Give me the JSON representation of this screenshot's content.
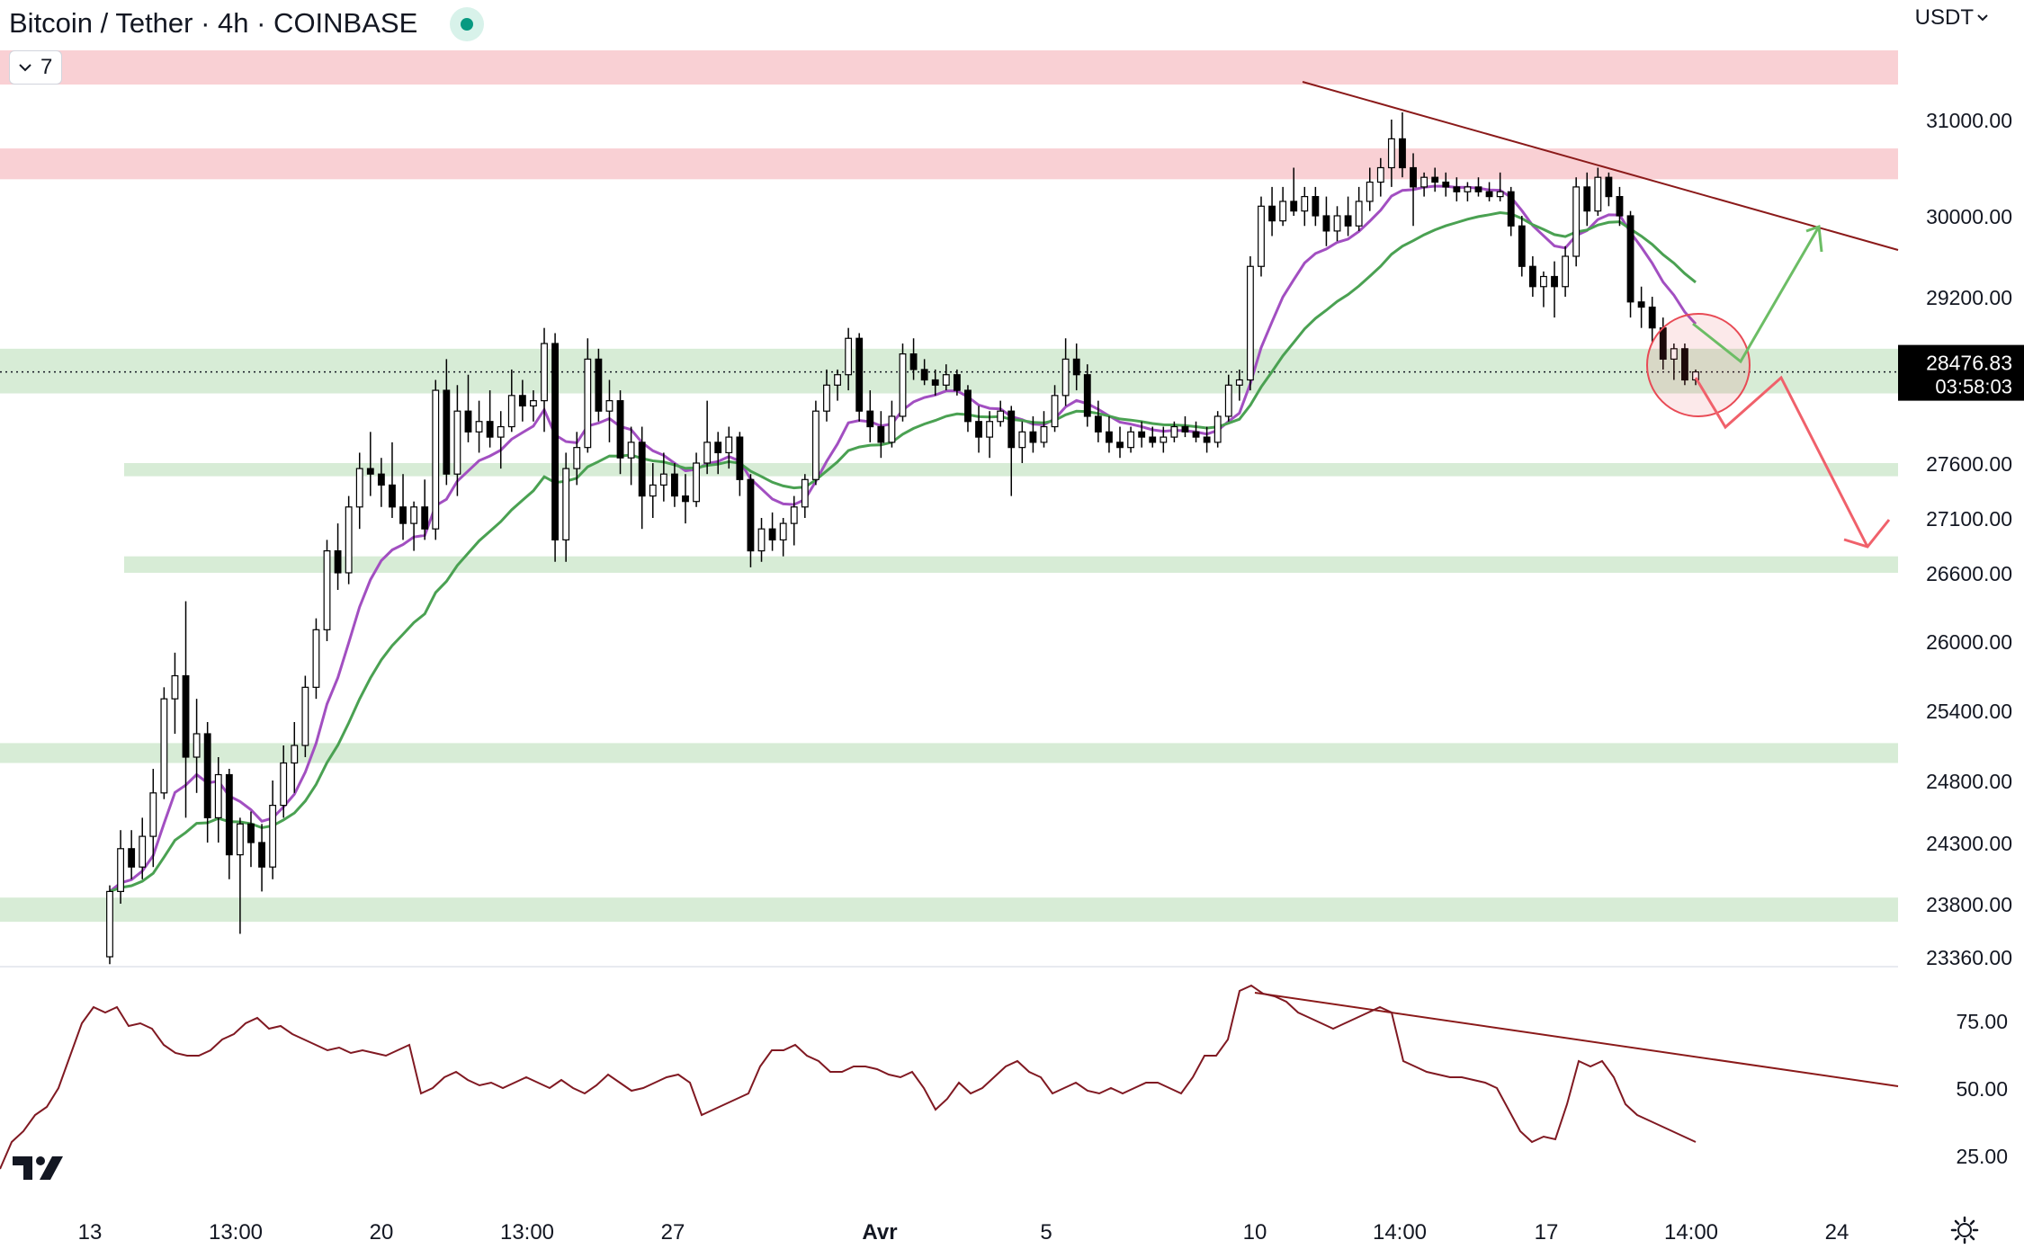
{
  "header": {
    "title": "Bitcoin / Tether · 4h · COINBASE",
    "indicator_count": "7",
    "currency": "USDT"
  },
  "colors": {
    "resistance_zone": "#f9d0d4",
    "support_zone": "#d7ecd6",
    "ema_fast": "#a24fc1",
    "ema_slow": "#4aa152",
    "trendline": "#8b1a1a",
    "rsi_line": "#801922",
    "bull_arrow": "#6cbd65",
    "bear_arrow": "#f0616b",
    "highlight_circle": "#e84a55",
    "price_badge": "#000000"
  },
  "price_badge": {
    "price": "28476.83",
    "countdown": "03:58:03"
  },
  "icons": {
    "logo": "tradingview-logo-icon",
    "settings": "settings-gear-icon",
    "chevron": "chevron-down-icon"
  },
  "chart_data": [
    {
      "type": "candlestick",
      "symbol": "Bitcoin / Tether",
      "timeframe": "4h",
      "exchange": "COINBASE",
      "currency": "USDT",
      "y_ticks": [
        "31000.00",
        "30000.00",
        "29200.00",
        "27600.00",
        "27100.00",
        "26600.00",
        "26000.00",
        "25400.00",
        "24800.00",
        "24300.00",
        "23800.00",
        "23360.00"
      ],
      "x_ticks": [
        "13",
        "13:00",
        "20",
        "13:00",
        "27",
        "Avr",
        "5",
        "10",
        "14:00",
        "17",
        "14:00",
        "24"
      ],
      "last_price": 28476.83,
      "ohlc": [
        {
          "o": 23360,
          "h": 23950,
          "l": 23300,
          "c": 23900
        },
        {
          "o": 23900,
          "h": 24400,
          "l": 23800,
          "c": 24250
        },
        {
          "o": 24250,
          "h": 24400,
          "l": 24000,
          "c": 24100
        },
        {
          "o": 24100,
          "h": 24500,
          "l": 24000,
          "c": 24350
        },
        {
          "o": 24350,
          "h": 24900,
          "l": 24100,
          "c": 24700
        },
        {
          "o": 24700,
          "h": 25600,
          "l": 24650,
          "c": 25500
        },
        {
          "o": 25500,
          "h": 25900,
          "l": 25200,
          "c": 25700
        },
        {
          "o": 25700,
          "h": 26350,
          "l": 24500,
          "c": 25000
        },
        {
          "o": 25000,
          "h": 25500,
          "l": 24700,
          "c": 25200
        },
        {
          "o": 25200,
          "h": 25300,
          "l": 24300,
          "c": 24500
        },
        {
          "o": 24500,
          "h": 25000,
          "l": 24300,
          "c": 24850
        },
        {
          "o": 24850,
          "h": 24900,
          "l": 24000,
          "c": 24200
        },
        {
          "o": 24200,
          "h": 24500,
          "l": 23550,
          "c": 24450
        },
        {
          "o": 24450,
          "h": 24550,
          "l": 24100,
          "c": 24300
        },
        {
          "o": 24300,
          "h": 24450,
          "l": 23900,
          "c": 24100
        },
        {
          "o": 24100,
          "h": 24800,
          "l": 24000,
          "c": 24600
        },
        {
          "o": 24600,
          "h": 25100,
          "l": 24500,
          "c": 24950
        },
        {
          "o": 24950,
          "h": 25300,
          "l": 24700,
          "c": 25100
        },
        {
          "o": 25100,
          "h": 25700,
          "l": 25000,
          "c": 25600
        },
        {
          "o": 25600,
          "h": 26200,
          "l": 25500,
          "c": 26100
        },
        {
          "o": 26100,
          "h": 26900,
          "l": 26000,
          "c": 26800
        },
        {
          "o": 26800,
          "h": 27050,
          "l": 26450,
          "c": 26600
        },
        {
          "o": 26600,
          "h": 27300,
          "l": 26500,
          "c": 27200
        },
        {
          "o": 27200,
          "h": 27700,
          "l": 27000,
          "c": 27550
        },
        {
          "o": 27550,
          "h": 27900,
          "l": 27300,
          "c": 27500
        },
        {
          "o": 27500,
          "h": 27650,
          "l": 27200,
          "c": 27400
        },
        {
          "o": 27400,
          "h": 27800,
          "l": 27100,
          "c": 27200
        },
        {
          "o": 27200,
          "h": 27500,
          "l": 26900,
          "c": 27050
        },
        {
          "o": 27050,
          "h": 27250,
          "l": 26800,
          "c": 27200
        },
        {
          "o": 27200,
          "h": 27450,
          "l": 26900,
          "c": 27000
        },
        {
          "o": 27000,
          "h": 28400,
          "l": 26900,
          "c": 28300
        },
        {
          "o": 28300,
          "h": 28600,
          "l": 27400,
          "c": 27500
        },
        {
          "o": 27500,
          "h": 28350,
          "l": 27300,
          "c": 28100
        },
        {
          "o": 28100,
          "h": 28450,
          "l": 27800,
          "c": 27900
        },
        {
          "o": 27900,
          "h": 28200,
          "l": 27700,
          "c": 28000
        },
        {
          "o": 28000,
          "h": 28300,
          "l": 27750,
          "c": 27850
        },
        {
          "o": 27850,
          "h": 28100,
          "l": 27550,
          "c": 27950
        },
        {
          "o": 27950,
          "h": 28500,
          "l": 27900,
          "c": 28250
        },
        {
          "o": 28250,
          "h": 28400,
          "l": 28000,
          "c": 28150
        },
        {
          "o": 28150,
          "h": 28300,
          "l": 28000,
          "c": 28200
        },
        {
          "o": 28200,
          "h": 28900,
          "l": 27900,
          "c": 28750
        },
        {
          "o": 28750,
          "h": 28850,
          "l": 26700,
          "c": 26900
        },
        {
          "o": 26900,
          "h": 27700,
          "l": 26700,
          "c": 27550
        },
        {
          "o": 27550,
          "h": 27900,
          "l": 27400,
          "c": 27750
        },
        {
          "o": 27750,
          "h": 28800,
          "l": 27700,
          "c": 28600
        },
        {
          "o": 28600,
          "h": 28700,
          "l": 28000,
          "c": 28100
        },
        {
          "o": 28100,
          "h": 28400,
          "l": 27800,
          "c": 28200
        },
        {
          "o": 28200,
          "h": 28300,
          "l": 27500,
          "c": 27650
        },
        {
          "o": 27650,
          "h": 27950,
          "l": 27400,
          "c": 27800
        },
        {
          "o": 27800,
          "h": 27950,
          "l": 27000,
          "c": 27300
        },
        {
          "o": 27300,
          "h": 27600,
          "l": 27100,
          "c": 27400
        },
        {
          "o": 27400,
          "h": 27700,
          "l": 27250,
          "c": 27500
        },
        {
          "o": 27500,
          "h": 27600,
          "l": 27200,
          "c": 27300
        },
        {
          "o": 27300,
          "h": 27500,
          "l": 27050,
          "c": 27250
        },
        {
          "o": 27250,
          "h": 27700,
          "l": 27200,
          "c": 27600
        },
        {
          "o": 27600,
          "h": 28200,
          "l": 27500,
          "c": 27800
        },
        {
          "o": 27800,
          "h": 27900,
          "l": 27500,
          "c": 27700
        },
        {
          "o": 27700,
          "h": 27950,
          "l": 27550,
          "c": 27850
        },
        {
          "o": 27850,
          "h": 27900,
          "l": 27300,
          "c": 27450
        },
        {
          "o": 27450,
          "h": 27500,
          "l": 26650,
          "c": 26800
        },
        {
          "o": 26800,
          "h": 27100,
          "l": 26700,
          "c": 27000
        },
        {
          "o": 27000,
          "h": 27150,
          "l": 26800,
          "c": 26900
        },
        {
          "o": 26900,
          "h": 27100,
          "l": 26750,
          "c": 27050
        },
        {
          "o": 27050,
          "h": 27300,
          "l": 26850,
          "c": 27200
        },
        {
          "o": 27200,
          "h": 27500,
          "l": 27100,
          "c": 27450
        },
        {
          "o": 27450,
          "h": 28200,
          "l": 27400,
          "c": 28100
        },
        {
          "o": 28100,
          "h": 28500,
          "l": 28000,
          "c": 28350
        },
        {
          "o": 28350,
          "h": 28500,
          "l": 28200,
          "c": 28450
        },
        {
          "o": 28450,
          "h": 28900,
          "l": 28300,
          "c": 28800
        },
        {
          "o": 28800,
          "h": 28850,
          "l": 28000,
          "c": 28100
        },
        {
          "o": 28100,
          "h": 28300,
          "l": 27800,
          "c": 27950
        },
        {
          "o": 27950,
          "h": 28100,
          "l": 27650,
          "c": 27800
        },
        {
          "o": 27800,
          "h": 28200,
          "l": 27750,
          "c": 28050
        },
        {
          "o": 28050,
          "h": 28750,
          "l": 28000,
          "c": 28650
        },
        {
          "o": 28650,
          "h": 28800,
          "l": 28400,
          "c": 28500
        },
        {
          "o": 28500,
          "h": 28600,
          "l": 28350,
          "c": 28400
        },
        {
          "o": 28400,
          "h": 28500,
          "l": 28250,
          "c": 28350
        },
        {
          "o": 28350,
          "h": 28550,
          "l": 28300,
          "c": 28450
        },
        {
          "o": 28450,
          "h": 28500,
          "l": 28250,
          "c": 28300
        },
        {
          "o": 28300,
          "h": 28350,
          "l": 27900,
          "c": 28000
        },
        {
          "o": 28000,
          "h": 28150,
          "l": 27700,
          "c": 27850
        },
        {
          "o": 27850,
          "h": 28100,
          "l": 27650,
          "c": 28000
        },
        {
          "o": 28000,
          "h": 28200,
          "l": 27950,
          "c": 28100
        },
        {
          "o": 28100,
          "h": 28150,
          "l": 27300,
          "c": 27750
        },
        {
          "o": 27750,
          "h": 28000,
          "l": 27600,
          "c": 27900
        },
        {
          "o": 27900,
          "h": 28050,
          "l": 27700,
          "c": 27800
        },
        {
          "o": 27800,
          "h": 28100,
          "l": 27750,
          "c": 27950
        },
        {
          "o": 27950,
          "h": 28350,
          "l": 27900,
          "c": 28250
        },
        {
          "o": 28250,
          "h": 28800,
          "l": 28150,
          "c": 28600
        },
        {
          "o": 28600,
          "h": 28750,
          "l": 28300,
          "c": 28450
        },
        {
          "o": 28450,
          "h": 28550,
          "l": 27950,
          "c": 28050
        },
        {
          "o": 28050,
          "h": 28200,
          "l": 27800,
          "c": 27900
        },
        {
          "o": 27900,
          "h": 28050,
          "l": 27700,
          "c": 27800
        },
        {
          "o": 27800,
          "h": 27950,
          "l": 27650,
          "c": 27750
        },
        {
          "o": 27750,
          "h": 27950,
          "l": 27700,
          "c": 27900
        },
        {
          "o": 27900,
          "h": 28000,
          "l": 27750,
          "c": 27850
        },
        {
          "o": 27850,
          "h": 27950,
          "l": 27750,
          "c": 27800
        },
        {
          "o": 27800,
          "h": 27950,
          "l": 27700,
          "c": 27850
        },
        {
          "o": 27850,
          "h": 28000,
          "l": 27800,
          "c": 27950
        },
        {
          "o": 27950,
          "h": 28050,
          "l": 27850,
          "c": 27900
        },
        {
          "o": 27900,
          "h": 28000,
          "l": 27800,
          "c": 27850
        },
        {
          "o": 27850,
          "h": 27950,
          "l": 27700,
          "c": 27800
        },
        {
          "o": 27800,
          "h": 28100,
          "l": 27750,
          "c": 28050
        },
        {
          "o": 28050,
          "h": 28450,
          "l": 28000,
          "c": 28350
        },
        {
          "o": 28350,
          "h": 28500,
          "l": 28200,
          "c": 28400
        },
        {
          "o": 28400,
          "h": 29600,
          "l": 28300,
          "c": 29500
        },
        {
          "o": 29500,
          "h": 30200,
          "l": 29400,
          "c": 30100
        },
        {
          "o": 30100,
          "h": 30300,
          "l": 29800,
          "c": 29950
        },
        {
          "o": 29950,
          "h": 30300,
          "l": 29900,
          "c": 30150
        },
        {
          "o": 30150,
          "h": 30500,
          "l": 30000,
          "c": 30050
        },
        {
          "o": 30050,
          "h": 30300,
          "l": 29900,
          "c": 30200
        },
        {
          "o": 30200,
          "h": 30300,
          "l": 29900,
          "c": 30000
        },
        {
          "o": 30000,
          "h": 30200,
          "l": 29700,
          "c": 29850
        },
        {
          "o": 29850,
          "h": 30100,
          "l": 29750,
          "c": 30000
        },
        {
          "o": 30000,
          "h": 30200,
          "l": 29800,
          "c": 29900
        },
        {
          "o": 29900,
          "h": 30300,
          "l": 29850,
          "c": 30150
        },
        {
          "o": 30150,
          "h": 30500,
          "l": 30050,
          "c": 30350
        },
        {
          "o": 30350,
          "h": 30600,
          "l": 30200,
          "c": 30500
        },
        {
          "o": 30500,
          "h": 31000,
          "l": 30300,
          "c": 30800
        },
        {
          "o": 30800,
          "h": 31050,
          "l": 30400,
          "c": 30500
        },
        {
          "o": 30500,
          "h": 30650,
          "l": 29900,
          "c": 30300
        },
        {
          "o": 30300,
          "h": 30450,
          "l": 30200,
          "c": 30400
        },
        {
          "o": 30400,
          "h": 30500,
          "l": 30250,
          "c": 30350
        },
        {
          "o": 30350,
          "h": 30450,
          "l": 30200,
          "c": 30300
        },
        {
          "o": 30300,
          "h": 30400,
          "l": 30150,
          "c": 30250
        },
        {
          "o": 30250,
          "h": 30350,
          "l": 30150,
          "c": 30300
        },
        {
          "o": 30300,
          "h": 30400,
          "l": 30200,
          "c": 30250
        },
        {
          "o": 30250,
          "h": 30350,
          "l": 30150,
          "c": 30200
        },
        {
          "o": 30200,
          "h": 30450,
          "l": 30150,
          "c": 30250
        },
        {
          "o": 30250,
          "h": 30300,
          "l": 29800,
          "c": 29900
        },
        {
          "o": 29900,
          "h": 30000,
          "l": 29400,
          "c": 29500
        },
        {
          "o": 29500,
          "h": 29600,
          "l": 29200,
          "c": 29300
        },
        {
          "o": 29300,
          "h": 29450,
          "l": 29100,
          "c": 29400
        },
        {
          "o": 29400,
          "h": 29550,
          "l": 29000,
          "c": 29300
        },
        {
          "o": 29300,
          "h": 29700,
          "l": 29200,
          "c": 29600
        },
        {
          "o": 29600,
          "h": 30400,
          "l": 29500,
          "c": 30300
        },
        {
          "o": 30300,
          "h": 30450,
          "l": 29900,
          "c": 30050
        },
        {
          "o": 30050,
          "h": 30500,
          "l": 30000,
          "c": 30400
        },
        {
          "o": 30400,
          "h": 30450,
          "l": 30100,
          "c": 30200
        },
        {
          "o": 30200,
          "h": 30300,
          "l": 29900,
          "c": 30000
        },
        {
          "o": 30000,
          "h": 30050,
          "l": 29000,
          "c": 29150
        },
        {
          "o": 29150,
          "h": 29300,
          "l": 28900,
          "c": 29100
        },
        {
          "o": 29100,
          "h": 29200,
          "l": 28750,
          "c": 28900
        },
        {
          "o": 28900,
          "h": 29000,
          "l": 28500,
          "c": 28600
        },
        {
          "o": 28600,
          "h": 28750,
          "l": 28400,
          "c": 28700
        },
        {
          "o": 28700,
          "h": 28750,
          "l": 28350,
          "c": 28400
        },
        {
          "o": 28400,
          "h": 28500,
          "l": 28350,
          "c": 28476.83
        }
      ]
    },
    {
      "type": "line",
      "name": "RSI",
      "y_ticks": [
        "75.00",
        "50.00",
        "25.00"
      ],
      "y_range": [
        10,
        95
      ],
      "values": [
        20,
        30,
        34,
        40,
        43,
        50,
        62,
        74,
        80,
        78,
        80,
        73,
        74,
        72,
        66,
        63,
        62,
        62,
        64,
        68,
        70,
        74,
        76,
        72,
        73,
        70,
        68,
        66,
        64,
        65,
        63,
        64,
        63,
        62,
        64,
        66,
        48,
        50,
        54,
        56,
        53,
        51,
        52,
        50,
        52,
        54,
        52,
        50,
        53,
        50,
        48,
        51,
        55,
        52,
        49,
        50,
        52,
        54,
        55,
        52,
        40,
        42,
        44,
        46,
        48,
        58,
        64,
        64,
        66,
        62,
        60,
        56,
        56,
        58,
        58,
        57,
        55,
        54,
        56,
        50,
        42,
        46,
        52,
        48,
        50,
        54,
        58,
        60,
        56,
        54,
        48,
        50,
        52,
        49,
        48,
        50,
        48,
        50,
        52,
        52,
        50,
        48,
        54,
        62,
        62,
        68,
        86,
        88,
        85,
        84,
        82,
        78,
        76,
        74,
        72,
        74,
        76,
        78,
        80,
        78,
        60,
        58,
        56,
        55,
        54,
        54,
        53,
        52,
        50,
        42,
        34,
        30,
        32,
        31,
        44,
        60,
        58,
        60,
        54,
        44,
        40,
        38,
        36,
        34,
        32,
        30
      ]
    }
  ]
}
